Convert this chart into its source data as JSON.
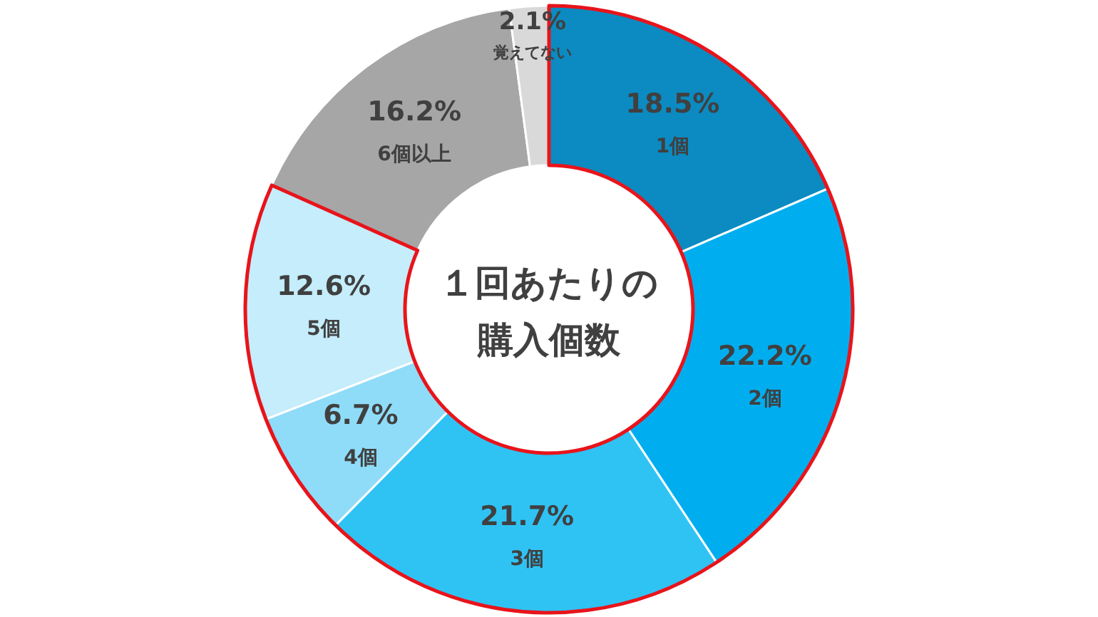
{
  "chart_data": {
    "type": "donut",
    "title": "１回あたりの購入個数",
    "categories": [
      "1個",
      "2個",
      "3個",
      "4個",
      "5個",
      "6個以上",
      "覚えてない"
    ],
    "values": [
      18.5,
      22.2,
      21.7,
      6.7,
      12.6,
      16.2,
      2.1
    ],
    "value_labels": [
      "18.5%",
      "22.2%",
      "21.7%",
      "6.7%",
      "12.6%",
      "16.2%",
      "2.1%"
    ],
    "colors": [
      "#0b8bc1",
      "#00aeef",
      "#2fc3f4",
      "#8fdcf8",
      "#c5edfb",
      "#a6a6a6",
      "#d9d9d9"
    ]
  }
}
